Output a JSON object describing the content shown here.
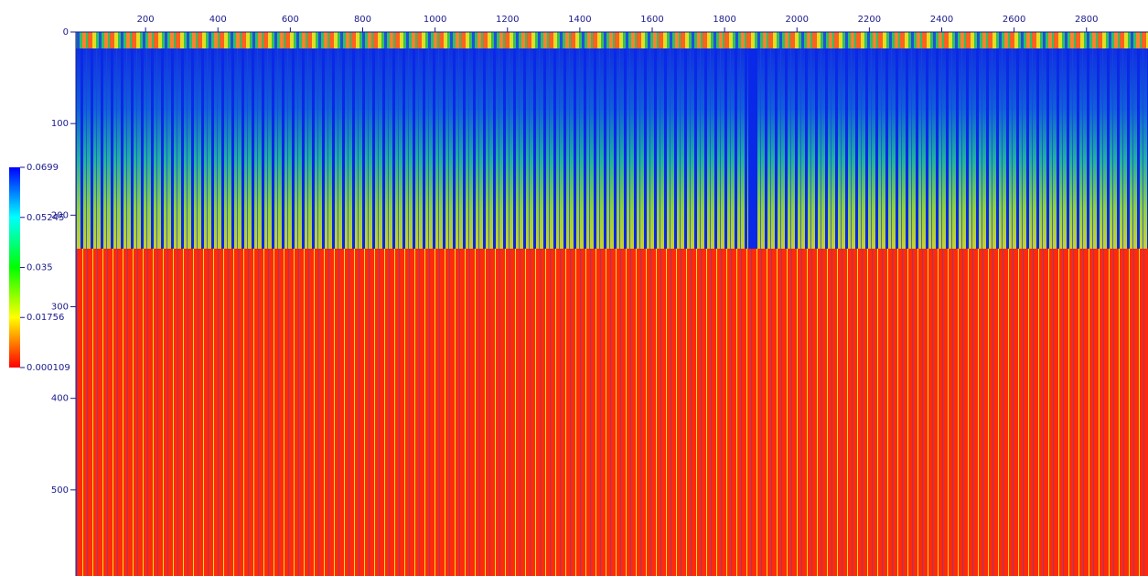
{
  "chart_data": {
    "type": "heatmap",
    "xlim": [
      0,
      2970
    ],
    "xticks": [
      200,
      400,
      600,
      800,
      1000,
      1200,
      1400,
      1600,
      1800,
      2000,
      2200,
      2400,
      2600,
      2800
    ],
    "ylim": [
      0,
      594
    ],
    "yticks": [
      0,
      100,
      200,
      300,
      400,
      500
    ],
    "colorbar": {
      "ticks": [
        0.0699,
        0.05245,
        0.035,
        0.01756,
        0.000109
      ],
      "colors": [
        "#0000ff",
        "#00ffff",
        "#00ff00",
        "#ffff00",
        "#ff0000"
      ]
    }
  }
}
